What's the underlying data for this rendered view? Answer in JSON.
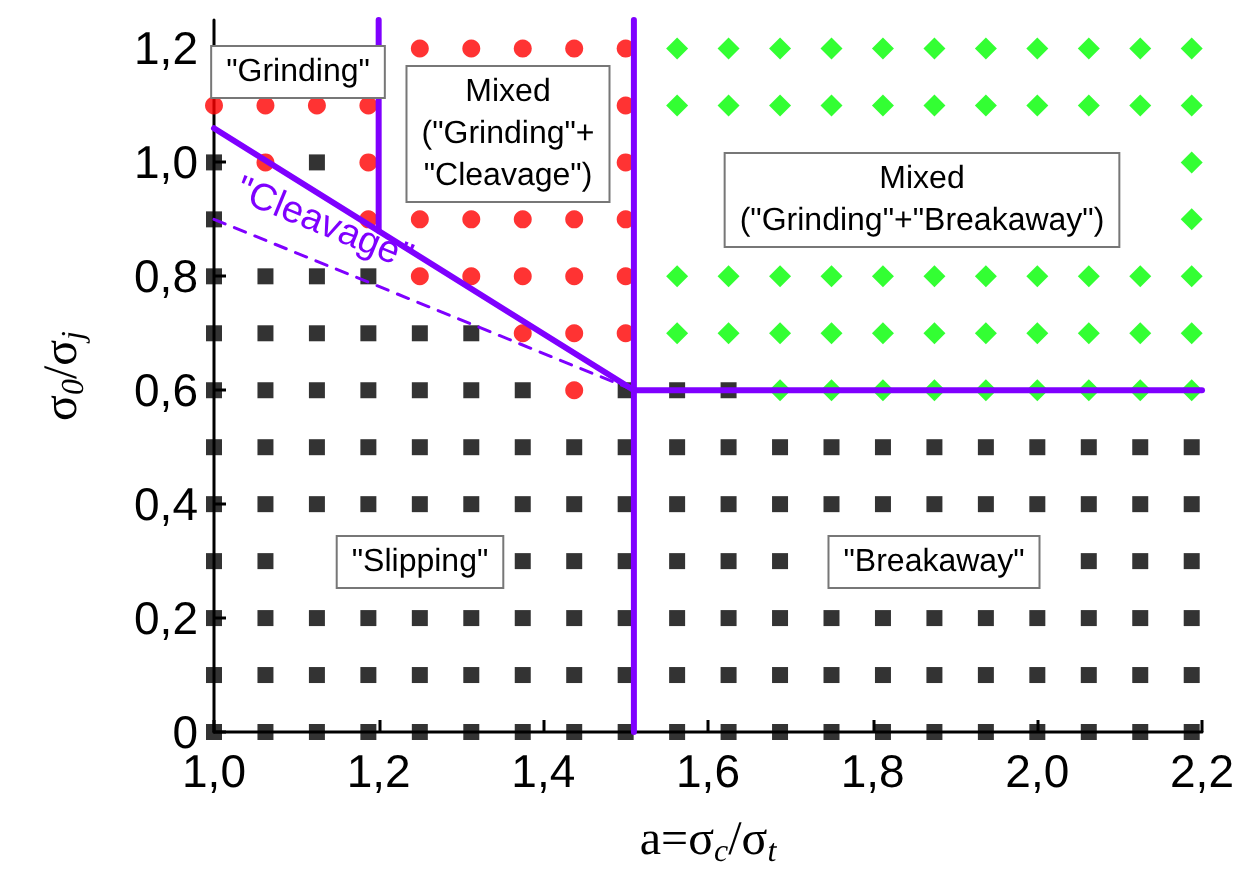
{
  "chart_data": {
    "type": "scatter",
    "xlabel": "a=σ$_{c}$/σ$_{t}$",
    "ylabel": "σ$_{0}$/σ$_{j}$",
    "xlim": [
      1.0,
      2.2
    ],
    "ylim": [
      0,
      1.25
    ],
    "xticks": [
      {
        "value": 1.0,
        "label": "1,0"
      },
      {
        "value": 1.2,
        "label": "1,2"
      },
      {
        "value": 1.4,
        "label": "1,4"
      },
      {
        "value": 1.6,
        "label": "1,6"
      },
      {
        "value": 1.8,
        "label": "1,8"
      },
      {
        "value": 2.0,
        "label": "2,0"
      },
      {
        "value": 2.2,
        "label": "2,2"
      }
    ],
    "yticks": [
      0,
      {
        "value": 0.2,
        "label": "0,2"
      },
      {
        "value": 0.4,
        "label": "0,4"
      },
      {
        "value": 0.6,
        "label": "0,6"
      },
      {
        "value": 0.8,
        "label": "0,8"
      },
      {
        "value": 1.0,
        "label": "1,0"
      },
      {
        "value": 1.2,
        "label": "1,2"
      }
    ],
    "grid": false,
    "series": [
      {
        "marker": "square",
        "color": "#000000",
        "x": [
          1,
          1.0625,
          1.125,
          1.1875,
          1.25,
          1.3125,
          1.375,
          1.4375,
          1.5,
          1.5625,
          1.625,
          1.6875,
          1.75,
          1.8125,
          1.875,
          1.9375,
          2,
          2.0625,
          2.125,
          2.1875,
          1,
          1.0625,
          1.125,
          1.1875,
          1.25,
          1.3125,
          1.375,
          1.4375,
          1.5,
          1.5625,
          1.625,
          1.6875,
          1.75,
          1.8125,
          1.875,
          1.9375,
          2,
          2.0625,
          2.125,
          2.1875,
          1,
          1.0625,
          1.125,
          1.1875,
          1.25,
          1.3125,
          1.375,
          1.4375,
          1.5,
          1.5625,
          1.625,
          1.6875,
          1.75,
          1.8125,
          1.875,
          1.9375,
          2,
          2.0625,
          2.125,
          2.1875,
          1,
          1.0625,
          1.375,
          1.4375,
          1.5,
          1.5625,
          1.625,
          1.6875,
          2.0625,
          2.125,
          2.1875,
          1,
          1.0625,
          1.125,
          1.1875,
          1.25,
          1.3125,
          1.375,
          1.4375,
          1.5,
          1.5625,
          1.625,
          1.6875,
          1.75,
          1.8125,
          1.875,
          1.9375,
          2,
          2.0625,
          2.125,
          2.1875,
          1,
          1.0625,
          1.125,
          1.1875,
          1.25,
          1.3125,
          1.375,
          1.4375,
          1.5,
          1.5625,
          1.625,
          1.6875,
          1.75,
          1.8125,
          1.875,
          1.9375,
          2,
          2.0625,
          2.125,
          2.1875,
          1,
          1.0625,
          1.125,
          1.1875,
          1.25,
          1.3125,
          1.375,
          1.5,
          1.5625,
          1.625,
          1,
          1.0625,
          1.125,
          1.1875,
          1.25,
          1.3125,
          1,
          1.0625,
          1.125,
          1.1875,
          1,
          1,
          1.125
        ],
        "values": [
          0,
          0,
          0,
          0,
          0,
          0,
          0,
          0,
          0,
          0,
          0,
          0,
          0,
          0,
          0,
          0,
          0,
          0,
          0,
          0,
          0.1,
          0.1,
          0.1,
          0.1,
          0.1,
          0.1,
          0.1,
          0.1,
          0.1,
          0.1,
          0.1,
          0.1,
          0.1,
          0.1,
          0.1,
          0.1,
          0.1,
          0.1,
          0.1,
          0.1,
          0.2,
          0.2,
          0.2,
          0.2,
          0.2,
          0.2,
          0.2,
          0.2,
          0.2,
          0.2,
          0.2,
          0.2,
          0.2,
          0.2,
          0.2,
          0.2,
          0.2,
          0.2,
          0.2,
          0.2,
          0.3,
          0.3,
          0.3,
          0.3,
          0.3,
          0.3,
          0.3,
          0.3,
          0.3,
          0.3,
          0.3,
          0.4,
          0.4,
          0.4,
          0.4,
          0.4,
          0.4,
          0.4,
          0.4,
          0.4,
          0.4,
          0.4,
          0.4,
          0.4,
          0.4,
          0.4,
          0.4,
          0.4,
          0.4,
          0.4,
          0.4,
          0.5,
          0.5,
          0.5,
          0.5,
          0.5,
          0.5,
          0.5,
          0.5,
          0.5,
          0.5,
          0.5,
          0.5,
          0.5,
          0.5,
          0.5,
          0.5,
          0.5,
          0.5,
          0.5,
          0.5,
          0.6,
          0.6,
          0.6,
          0.6,
          0.6,
          0.6,
          0.6,
          0.6,
          0.6,
          0.6,
          0.7,
          0.7,
          0.7,
          0.7,
          0.7,
          0.7,
          0.8,
          0.8,
          0.8,
          0.8,
          0.9,
          1.0,
          1.0
        ]
      },
      {
        "marker": "circle",
        "color": "#ff0000",
        "x": [
          1.25,
          1.3125,
          1.375,
          1.4375,
          1.5,
          1,
          1.0625,
          1.125,
          1.1875,
          1.5,
          1.0625,
          1.1875,
          1.5,
          1.1875,
          1.25,
          1.3125,
          1.375,
          1.4375,
          1.5,
          1.25,
          1.3125,
          1.375,
          1.4375,
          1.5,
          1.375,
          1.4375,
          1.5,
          1.4375
        ],
        "values": [
          1.2,
          1.2,
          1.2,
          1.2,
          1.2,
          1.1,
          1.1,
          1.1,
          1.1,
          1.1,
          1.0,
          1.0,
          1.0,
          0.9,
          0.9,
          0.9,
          0.9,
          0.9,
          0.9,
          0.8,
          0.8,
          0.8,
          0.8,
          0.8,
          0.7,
          0.7,
          0.7,
          0.6
        ]
      },
      {
        "marker": "diamond",
        "color": "#00ff00",
        "x": [
          1.5625,
          1.625,
          1.6875,
          1.75,
          1.8125,
          1.875,
          1.9375,
          2,
          2.0625,
          2.125,
          2.1875,
          1.5625,
          1.625,
          1.6875,
          1.75,
          1.8125,
          1.875,
          1.9375,
          2,
          2.0625,
          2.125,
          2.1875,
          2.1875,
          2.1875,
          1.5625,
          1.625,
          1.6875,
          1.75,
          1.8125,
          1.875,
          1.9375,
          2,
          2.0625,
          2.125,
          2.1875,
          1.5625,
          1.625,
          1.6875,
          1.75,
          1.8125,
          1.875,
          1.9375,
          2,
          2.0625,
          2.125,
          2.1875,
          1.6875,
          1.75,
          1.8125,
          1.875,
          1.9375,
          2,
          2.0625,
          2.125,
          2.1875
        ],
        "values": [
          1.2,
          1.2,
          1.2,
          1.2,
          1.2,
          1.2,
          1.2,
          1.2,
          1.2,
          1.2,
          1.2,
          1.1,
          1.1,
          1.1,
          1.1,
          1.1,
          1.1,
          1.1,
          1.1,
          1.1,
          1.1,
          1.1,
          1.0,
          0.9,
          0.8,
          0.8,
          0.8,
          0.8,
          0.8,
          0.8,
          0.8,
          0.8,
          0.8,
          0.8,
          0.8,
          0.7,
          0.7,
          0.7,
          0.7,
          0.7,
          0.7,
          0.7,
          0.7,
          0.7,
          0.7,
          0.7,
          0.6,
          0.6,
          0.6,
          0.6,
          0.6,
          0.6,
          0.6,
          0.6,
          0.6
        ]
      },
      {
        "type": "line",
        "line_style": "solid",
        "color": "#7f00ff",
        "x": [
          1.0,
          1.51
        ],
        "values": [
          1.06,
          0.6
        ]
      },
      {
        "type": "line",
        "line_style": "dashed",
        "color": "#7f00ff",
        "x": [
          1.0,
          1.51
        ],
        "values": [
          0.9,
          0.6
        ]
      },
      {
        "type": "line",
        "line_style": "solid",
        "color": "#7f00ff",
        "x": [
          1.2,
          1.2
        ],
        "values": [
          0.88,
          1.25
        ]
      },
      {
        "type": "line",
        "line_style": "solid",
        "color": "#7f00ff",
        "x": [
          1.51,
          1.51
        ],
        "values": [
          0,
          1.25
        ]
      },
      {
        "type": "line",
        "line_style": "solid",
        "color": "#7f00ff",
        "x": [
          1.51,
          2.2
        ],
        "values": [
          0.6,
          0.6
        ]
      }
    ],
    "annotations": [
      "\"Grinding\"",
      "Mixed\n(\"Grinding\"+\n\"Cleavage\")",
      "Mixed\n(\"Grinding\"+\"Breakaway\")",
      "\"Cleavage\"",
      "\"Slipping\"",
      "\"Breakaway\""
    ]
  }
}
